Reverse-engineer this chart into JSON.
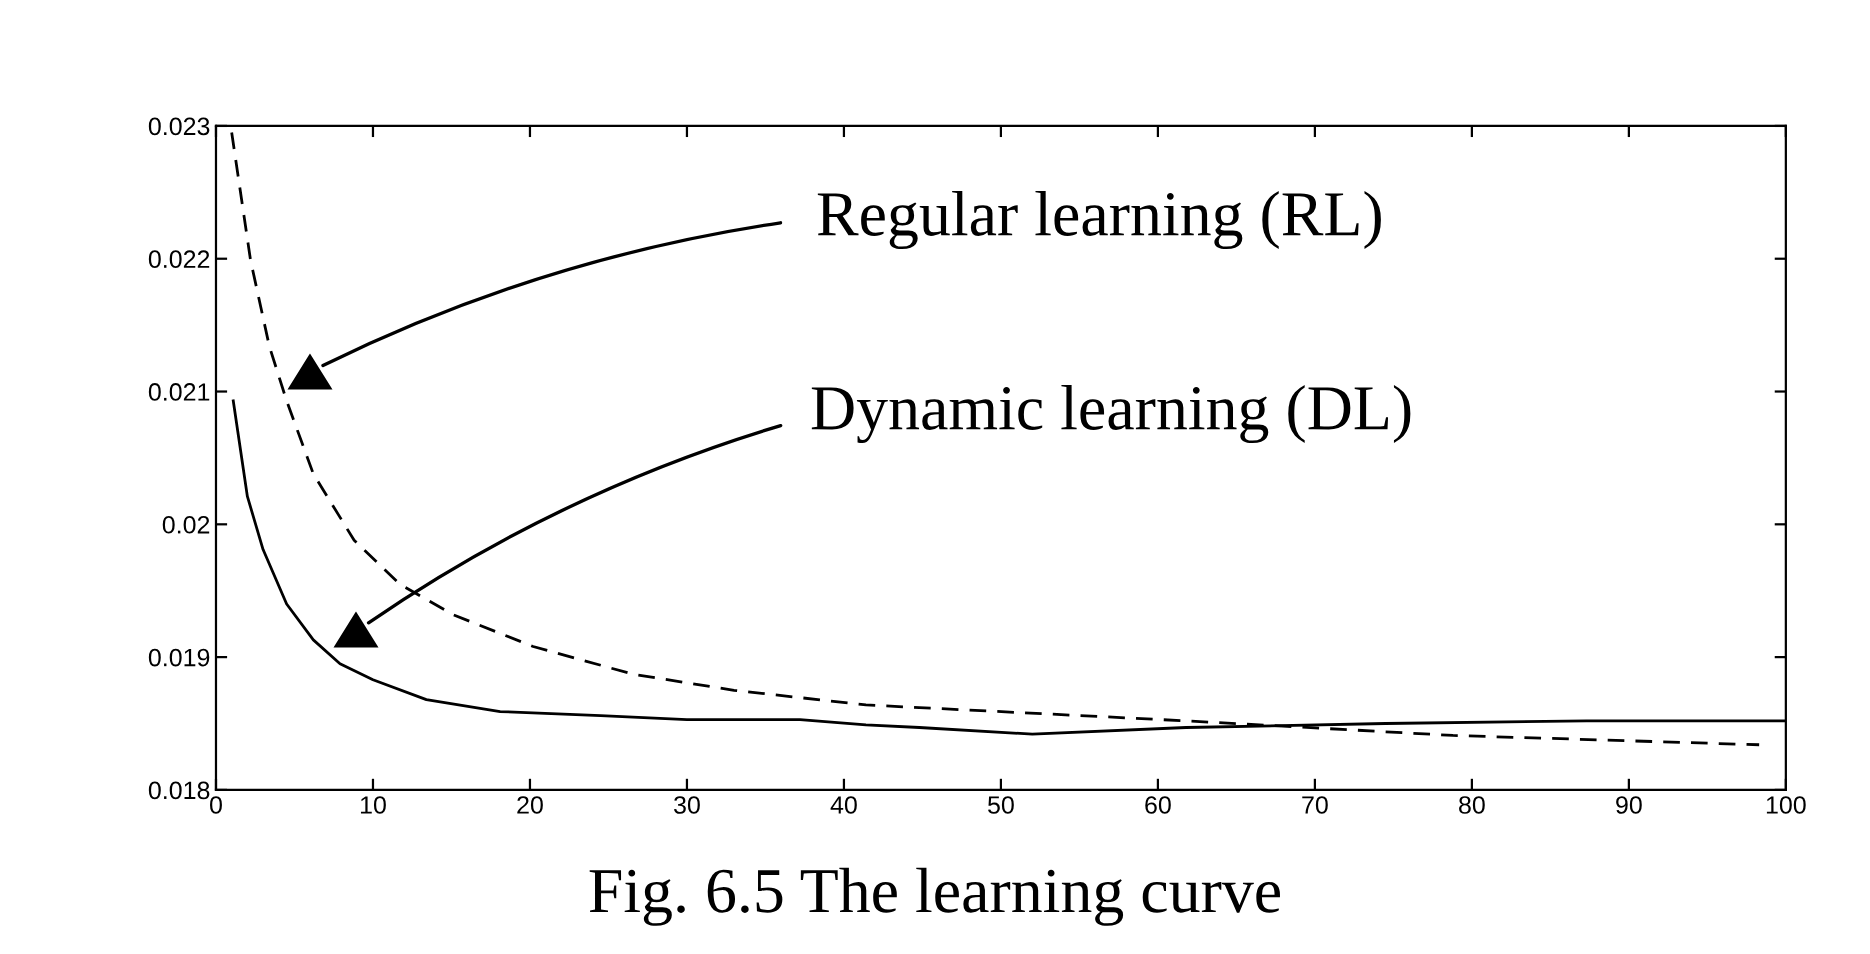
{
  "chart_data": {
    "type": "line",
    "xlim": [
      0,
      100
    ],
    "ylim": [
      0.018,
      0.023
    ],
    "xticks": [
      0,
      10,
      20,
      30,
      40,
      50,
      60,
      70,
      80,
      90,
      100
    ],
    "yticks": [
      0.018,
      0.019,
      0.02,
      0.021,
      0.022,
      0.023
    ],
    "grid": false,
    "legend": false,
    "series": [
      {
        "color": "#000000",
        "line_style": "dashed",
        "x": [
          1,
          2.2,
          3.4,
          4.5,
          6.2,
          8.8,
          11.7,
          15.1,
          20.2,
          26.6,
          33,
          41.4,
          44.8,
          61.8,
          78.8,
          98.3
        ],
        "values": [
          0.02295,
          0.02199,
          0.02134,
          0.02093,
          0.02038,
          0.01988,
          0.01955,
          0.01932,
          0.01908,
          0.01887,
          0.01875,
          0.01864,
          0.01862,
          0.01852,
          0.01841,
          0.01834
        ]
      },
      {
        "color": "#000000",
        "line_style": "solid",
        "x": [
          1.1,
          2,
          3,
          4.5,
          6.2,
          7.9,
          10,
          13.4,
          18.1,
          24.5,
          30,
          37.2,
          41.4,
          44.8,
          52,
          61.8,
          74.5,
          87.3,
          100
        ],
        "values": [
          0.02093,
          0.02021,
          0.01981,
          0.0194,
          0.01913,
          0.01895,
          0.01883,
          0.01868,
          0.01859,
          0.01856,
          0.01853,
          0.01853,
          0.01849,
          0.01847,
          0.01842,
          0.01847,
          0.0185,
          0.01852,
          0.01852
        ]
      }
    ],
    "annotations": [
      "Regular learning (RL)",
      "Dynamic learning (DL)",
      "Fig. 6.5 The learning curve"
    ]
  }
}
